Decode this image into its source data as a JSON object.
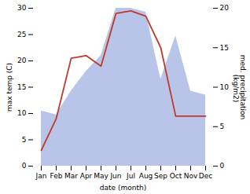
{
  "chart_data": {
    "type": "line",
    "categories": [
      "Jan",
      "Feb",
      "Mar",
      "Apr",
      "May",
      "Jun",
      "Jul",
      "Aug",
      "Sep",
      "Oct",
      "Nov",
      "Dec"
    ],
    "xlabel": "date (month)",
    "ylabel": "max temp (C)",
    "y2label": "med. precipitation\n (kg/m2)",
    "ylim": [
      0,
      30
    ],
    "yticks": [
      0,
      5,
      10,
      15,
      20,
      25,
      30
    ],
    "y2lim": [
      0,
      20
    ],
    "y2ticks": [
      0,
      5,
      10,
      15,
      20
    ],
    "grid": false,
    "series": [
      {
        "type": "area",
        "axis": "y2",
        "color": "#b8c4e8",
        "values": [
          7.0,
          6.5,
          9.5,
          12.0,
          14.0,
          20.0,
          20.0,
          19.5,
          11.0,
          16.5,
          9.5,
          9.0
        ]
      },
      {
        "type": "line",
        "color": "#c0392b",
        "values": [
          3.0,
          9.0,
          20.5,
          21.0,
          19.0,
          29.0,
          29.5,
          28.5,
          22.5,
          9.5,
          9.5,
          9.5
        ]
      }
    ]
  }
}
